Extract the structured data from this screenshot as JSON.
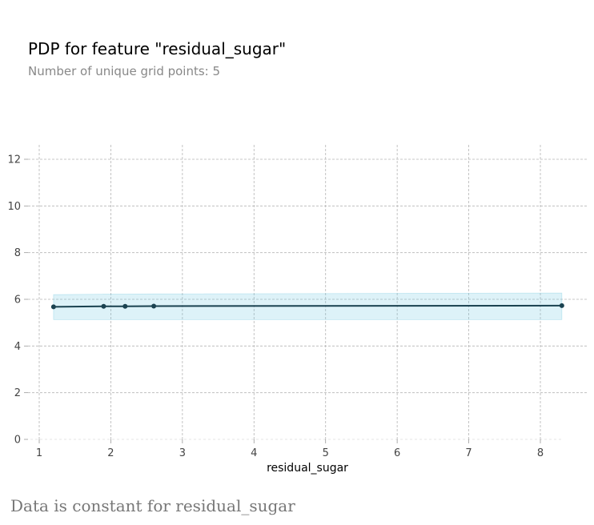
{
  "chart_data": {
    "type": "line",
    "title": "PDP for feature \"residual_sugar\"",
    "subtitle": "Number of unique grid points: 5",
    "xlabel": "residual_sugar",
    "ylabel": "",
    "xlim": [
      1,
      8.3
    ],
    "ylim": [
      0,
      12.5
    ],
    "x_ticks": [
      1,
      2,
      3,
      4,
      5,
      6,
      7,
      8
    ],
    "y_ticks": [
      0,
      2,
      4,
      6,
      8,
      10,
      12
    ],
    "grid": true,
    "series": [
      {
        "x": [
          1.2,
          1.9,
          2.2,
          2.6,
          8.3
        ],
        "y": [
          5.68,
          5.7,
          5.7,
          5.71,
          5.73
        ],
        "lower": [
          5.13,
          5.13,
          5.13,
          5.13,
          5.13
        ],
        "upper": [
          6.2,
          6.22,
          6.22,
          6.23,
          6.27
        ]
      }
    ]
  },
  "footnote": "Data is constant for residual_sugar",
  "colors": {
    "line": "#1a4250",
    "band": "#66c2dd",
    "grid": "#b5b5b5",
    "tick_text": "#444444",
    "title": "#000000",
    "subtitle": "#888888",
    "footnote": "#777777"
  }
}
